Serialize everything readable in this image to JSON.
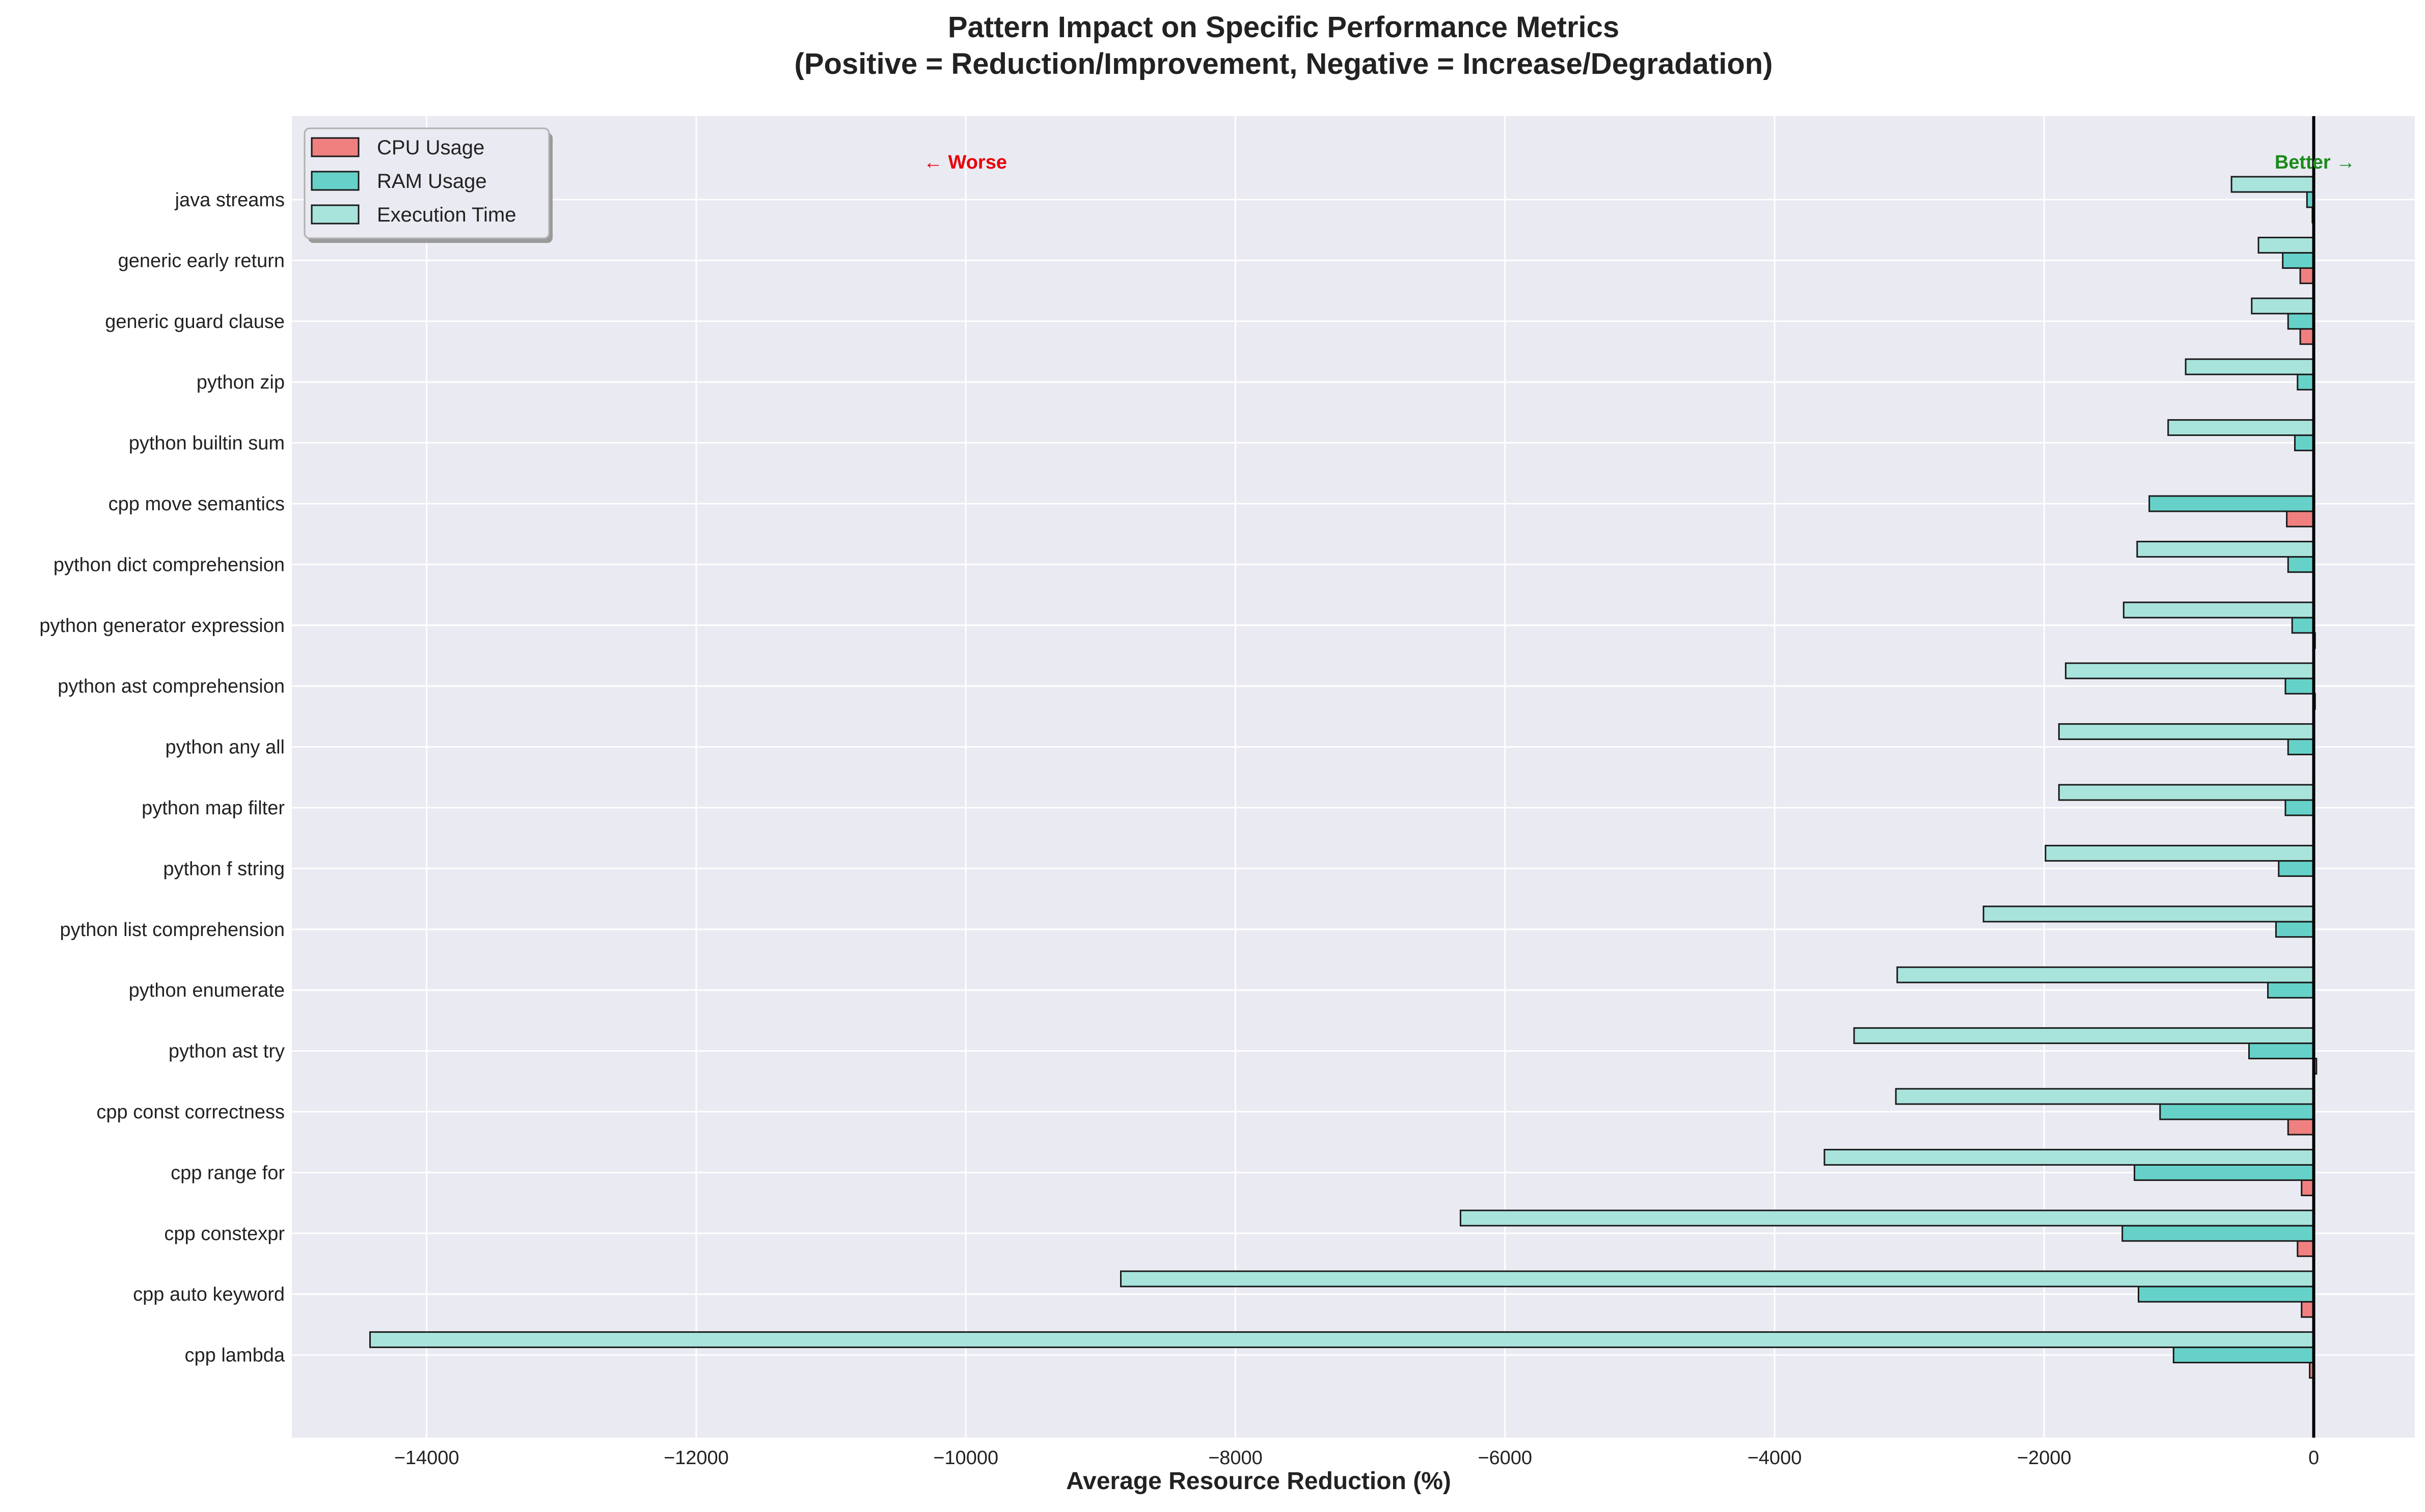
{
  "chart_data": {
    "type": "bar",
    "orientation": "horizontal",
    "title": "Pattern Impact on Specific Performance Metrics",
    "subtitle": "(Positive = Reduction/Improvement, Negative = Increase/Degradation)",
    "xlabel": "Average Resource Reduction (%)",
    "ylabel": "",
    "xlim": [
      -15000,
      750
    ],
    "xticks": [
      -14000,
      -12000,
      -10000,
      -8000,
      -6000,
      -4000,
      -2000,
      0
    ],
    "grid": true,
    "legend_position": "upper-left",
    "annotations": {
      "worse": "← Worse",
      "better": "Better →"
    },
    "colors": {
      "cpu": "#f08080",
      "ram": "#66d1c8",
      "time": "#a8e3dc",
      "edge": "#1a1a1a",
      "worse": "#e8000b",
      "better": "#1a8a1a",
      "plot_bg": "#eaeaf2"
    },
    "categories": [
      "java streams",
      "generic early return",
      "generic guard clause",
      "python zip",
      "python builtin sum",
      "cpp move semantics",
      "python dict comprehension",
      "python generator expression",
      "python ast comprehension",
      "python any all",
      "python map filter",
      "python f string",
      "python list comprehension",
      "python enumerate",
      "python ast try",
      "cpp const correctness",
      "cpp range for",
      "cpp constexpr",
      "cpp auto keyword",
      "cpp lambda"
    ],
    "series": [
      {
        "name": "CPU Usage",
        "key": "cpu",
        "values": [
          -10,
          -100,
          -100,
          0,
          0,
          -200,
          0,
          10,
          10,
          0,
          0,
          0,
          0,
          0,
          20,
          -190,
          -90,
          -120,
          -90,
          -30
        ]
      },
      {
        "name": "RAM Usage",
        "key": "ram",
        "values": [
          -50,
          -230,
          -190,
          -120,
          -140,
          -1220,
          -190,
          -160,
          -210,
          -190,
          -210,
          -260,
          -280,
          -340,
          -480,
          -1140,
          -1330,
          -1420,
          -1300,
          -1040
        ]
      },
      {
        "name": "Execution Time",
        "key": "time",
        "values": [
          -610,
          -410,
          -460,
          -950,
          -1080,
          0,
          -1310,
          -1410,
          -1840,
          -1890,
          -1890,
          -1990,
          -2450,
          -3090,
          -3410,
          -3100,
          -3630,
          -6330,
          -8850,
          -14420
        ]
      }
    ]
  }
}
